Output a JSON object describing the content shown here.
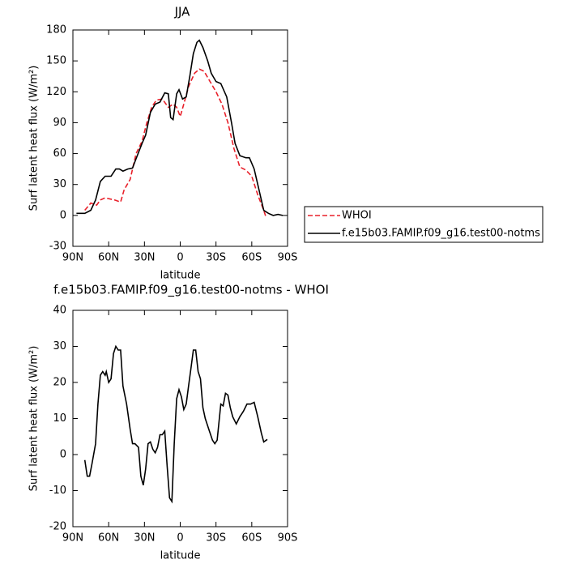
{
  "chart_data": [
    {
      "type": "line",
      "title": "JJA",
      "xlabel": "latitude",
      "ylabel": "Surf latent heat flux (W/m²)",
      "xlim": [
        90,
        -90
      ],
      "ylim": [
        -30,
        180
      ],
      "xticks": [
        {
          "value": 90,
          "label": "90N"
        },
        {
          "value": 60,
          "label": "60N"
        },
        {
          "value": 30,
          "label": "30N"
        },
        0,
        {
          "value": -30,
          "label": "30S"
        },
        {
          "value": -60,
          "label": "60S"
        },
        {
          "value": -90,
          "label": "90S"
        }
      ],
      "yticks": [
        -30,
        0,
        30,
        60,
        90,
        120,
        150,
        180
      ],
      "legend": true,
      "series": [
        {
          "name": "WHOI",
          "color": "#e8202a",
          "linestyle": "dashed",
          "x": [
            80,
            75,
            70,
            67,
            63,
            55,
            50,
            47,
            42,
            37,
            32,
            28,
            24,
            20,
            15,
            10,
            6,
            3,
            0,
            -3,
            -7,
            -12,
            -16,
            -20,
            -25,
            -30,
            -35,
            -40,
            -45,
            -50,
            -55,
            -60,
            -65,
            -70,
            -72
          ],
          "values": [
            5,
            12,
            10,
            15,
            17,
            15,
            13,
            25,
            35,
            60,
            72,
            90,
            105,
            112,
            113,
            105,
            108,
            105,
            96,
            108,
            125,
            138,
            142,
            140,
            130,
            120,
            108,
            90,
            65,
            47,
            44,
            38,
            20,
            5,
            -2
          ]
        },
        {
          "name": "f.e15b03.FAMIP.f09_g16.test00-notms",
          "color": "#000000",
          "linestyle": "solid",
          "x": [
            87,
            80,
            75,
            71,
            67,
            63,
            58,
            54,
            51,
            48,
            44,
            40,
            37,
            32,
            29,
            25,
            21,
            17,
            13,
            10,
            8,
            6,
            3,
            1,
            -2,
            -5,
            -8,
            -11,
            -14,
            -16,
            -19,
            -23,
            -26,
            -30,
            -34,
            -39,
            -43,
            -46,
            -50,
            -55,
            -58,
            -62,
            -66,
            -70,
            -74,
            -78,
            -82,
            -86
          ],
          "values": [
            2,
            2,
            5,
            15,
            33,
            38,
            38,
            45,
            45,
            43,
            45,
            46,
            55,
            70,
            78,
            100,
            108,
            110,
            119,
            118,
            95,
            93,
            118,
            122,
            113,
            115,
            135,
            157,
            168,
            170,
            163,
            150,
            138,
            130,
            128,
            115,
            90,
            70,
            58,
            56,
            56,
            45,
            25,
            5,
            2,
            0,
            1,
            0
          ]
        }
      ]
    },
    {
      "type": "line",
      "title": "f.e15b03.FAMIP.f09_g16.test00-notms - WHOI",
      "xlabel": "latitude",
      "ylabel": "Surf latent heat flux (W/m²)",
      "xlim": [
        90,
        -90
      ],
      "ylim": [
        -20,
        40
      ],
      "xticks": [
        {
          "value": 90,
          "label": "90N"
        },
        {
          "value": 60,
          "label": "60N"
        },
        {
          "value": 30,
          "label": "30N"
        },
        0,
        {
          "value": -30,
          "label": "30S"
        },
        {
          "value": -60,
          "label": "60S"
        },
        {
          "value": -90,
          "label": "90S"
        }
      ],
      "yticks": [
        -20,
        -10,
        0,
        10,
        20,
        30,
        40
      ],
      "legend": false,
      "series": [
        {
          "color": "#000000",
          "linestyle": "solid",
          "x": [
            80,
            78,
            76,
            74,
            71,
            69,
            67,
            65,
            63,
            62,
            60,
            58,
            56,
            54,
            52,
            50,
            48,
            45,
            42,
            40,
            38,
            35,
            33,
            31,
            29,
            27,
            25,
            23,
            21,
            19,
            17,
            15,
            13,
            11,
            9,
            7,
            5,
            3,
            1,
            -1,
            -3,
            -5,
            -7,
            -9,
            -11,
            -13,
            -15,
            -17,
            -19,
            -21,
            -24,
            -27,
            -29,
            -31,
            -34,
            -36,
            -38,
            -40,
            -42,
            -44,
            -47,
            -50,
            -53,
            -56,
            -59,
            -62,
            -65,
            -68,
            -70,
            -73
          ],
          "values": [
            -1.5,
            -6,
            -6,
            -2.5,
            3,
            14,
            22,
            23,
            22,
            23,
            20,
            21,
            28,
            30,
            29,
            29,
            19,
            14,
            7,
            3,
            3,
            2,
            -6,
            -8.5,
            -4,
            3,
            3.5,
            1.5,
            0.5,
            2,
            5.5,
            5.5,
            6.5,
            -3,
            -12,
            -13,
            3,
            15.5,
            18,
            16,
            12.5,
            14,
            19,
            24,
            29,
            29,
            23,
            21,
            13,
            10,
            7,
            4,
            3,
            4,
            14,
            13.5,
            17,
            16.5,
            13,
            10.5,
            8.5,
            10.5,
            12,
            14,
            14,
            14.5,
            10.5,
            6,
            3.5,
            4.2
          ]
        }
      ]
    }
  ]
}
